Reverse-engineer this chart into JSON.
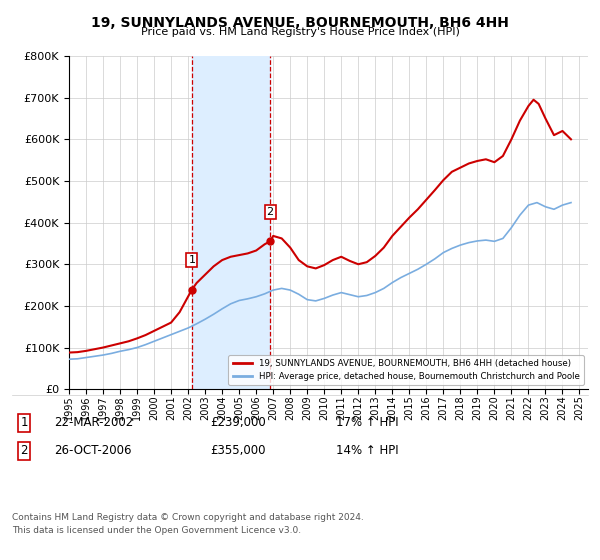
{
  "title": "19, SUNNYLANDS AVENUE, BOURNEMOUTH, BH6 4HH",
  "subtitle": "Price paid vs. HM Land Registry's House Price Index (HPI)",
  "legend_line1": "19, SUNNYLANDS AVENUE, BOURNEMOUTH, BH6 4HH (detached house)",
  "legend_line2": "HPI: Average price, detached house, Bournemouth Christchurch and Poole",
  "footer1": "Contains HM Land Registry data © Crown copyright and database right 2024.",
  "footer2": "This data is licensed under the Open Government Licence v3.0.",
  "sale1_date": "22-MAR-2002",
  "sale1_price": "£239,000",
  "sale1_hpi": "17% ↑ HPI",
  "sale2_date": "26-OCT-2006",
  "sale2_price": "£355,000",
  "sale2_hpi": "14% ↑ HPI",
  "sale1_year": 2002.22,
  "sale1_value": 239000,
  "sale2_year": 2006.82,
  "sale2_value": 355000,
  "red_color": "#cc0000",
  "blue_color": "#7aade0",
  "shade_color": "#ddeeff",
  "marker_box_color": "#cc0000",
  "ylim": [
    0,
    800000
  ],
  "xlim_start": 1995,
  "xlim_end": 2025.5,
  "hpi_years": [
    1995.0,
    1995.5,
    1996.0,
    1996.5,
    1997.0,
    1997.5,
    1998.0,
    1998.5,
    1999.0,
    1999.5,
    2000.0,
    2000.5,
    2001.0,
    2001.5,
    2002.0,
    2002.5,
    2003.0,
    2003.5,
    2004.0,
    2004.5,
    2005.0,
    2005.5,
    2006.0,
    2006.5,
    2007.0,
    2007.5,
    2008.0,
    2008.5,
    2009.0,
    2009.5,
    2010.0,
    2010.5,
    2011.0,
    2011.5,
    2012.0,
    2012.5,
    2013.0,
    2013.5,
    2014.0,
    2014.5,
    2015.0,
    2015.5,
    2016.0,
    2016.5,
    2017.0,
    2017.5,
    2018.0,
    2018.5,
    2019.0,
    2019.5,
    2020.0,
    2020.5,
    2021.0,
    2021.5,
    2022.0,
    2022.5,
    2023.0,
    2023.5,
    2024.0,
    2024.5
  ],
  "hpi_values": [
    72000,
    73000,
    76000,
    79000,
    82000,
    86000,
    91000,
    95000,
    100000,
    107000,
    115000,
    123000,
    131000,
    139000,
    147000,
    157000,
    168000,
    180000,
    193000,
    205000,
    213000,
    217000,
    222000,
    229000,
    238000,
    242000,
    238000,
    228000,
    215000,
    212000,
    218000,
    226000,
    232000,
    227000,
    222000,
    225000,
    232000,
    242000,
    256000,
    268000,
    278000,
    288000,
    300000,
    313000,
    328000,
    338000,
    346000,
    352000,
    356000,
    358000,
    355000,
    362000,
    388000,
    418000,
    442000,
    448000,
    438000,
    432000,
    442000,
    448000
  ],
  "prop_years": [
    1995.0,
    1995.5,
    1996.0,
    1996.5,
    1997.0,
    1997.5,
    1998.0,
    1998.5,
    1999.0,
    1999.5,
    2000.0,
    2000.5,
    2001.0,
    2001.5,
    2002.22,
    2002.5,
    2003.0,
    2003.5,
    2004.0,
    2004.5,
    2005.0,
    2005.5,
    2006.0,
    2006.5,
    2006.82,
    2007.0,
    2007.5,
    2008.0,
    2008.5,
    2009.0,
    2009.5,
    2010.0,
    2010.5,
    2011.0,
    2011.5,
    2012.0,
    2012.5,
    2013.0,
    2013.5,
    2014.0,
    2014.5,
    2015.0,
    2015.5,
    2016.0,
    2016.5,
    2017.0,
    2017.5,
    2018.0,
    2018.5,
    2019.0,
    2019.5,
    2020.0,
    2020.5,
    2021.0,
    2021.5,
    2022.0,
    2022.3,
    2022.6,
    2023.0,
    2023.5,
    2024.0,
    2024.5
  ],
  "prop_values": [
    88000,
    89000,
    92000,
    96000,
    100000,
    105000,
    110000,
    115000,
    122000,
    130000,
    140000,
    150000,
    160000,
    185000,
    239000,
    255000,
    275000,
    295000,
    310000,
    318000,
    322000,
    326000,
    333000,
    348000,
    355000,
    368000,
    362000,
    340000,
    310000,
    295000,
    290000,
    298000,
    310000,
    318000,
    308000,
    300000,
    305000,
    320000,
    340000,
    368000,
    390000,
    412000,
    432000,
    455000,
    478000,
    502000,
    522000,
    532000,
    542000,
    548000,
    552000,
    545000,
    560000,
    600000,
    645000,
    680000,
    695000,
    685000,
    650000,
    610000,
    620000,
    600000
  ]
}
